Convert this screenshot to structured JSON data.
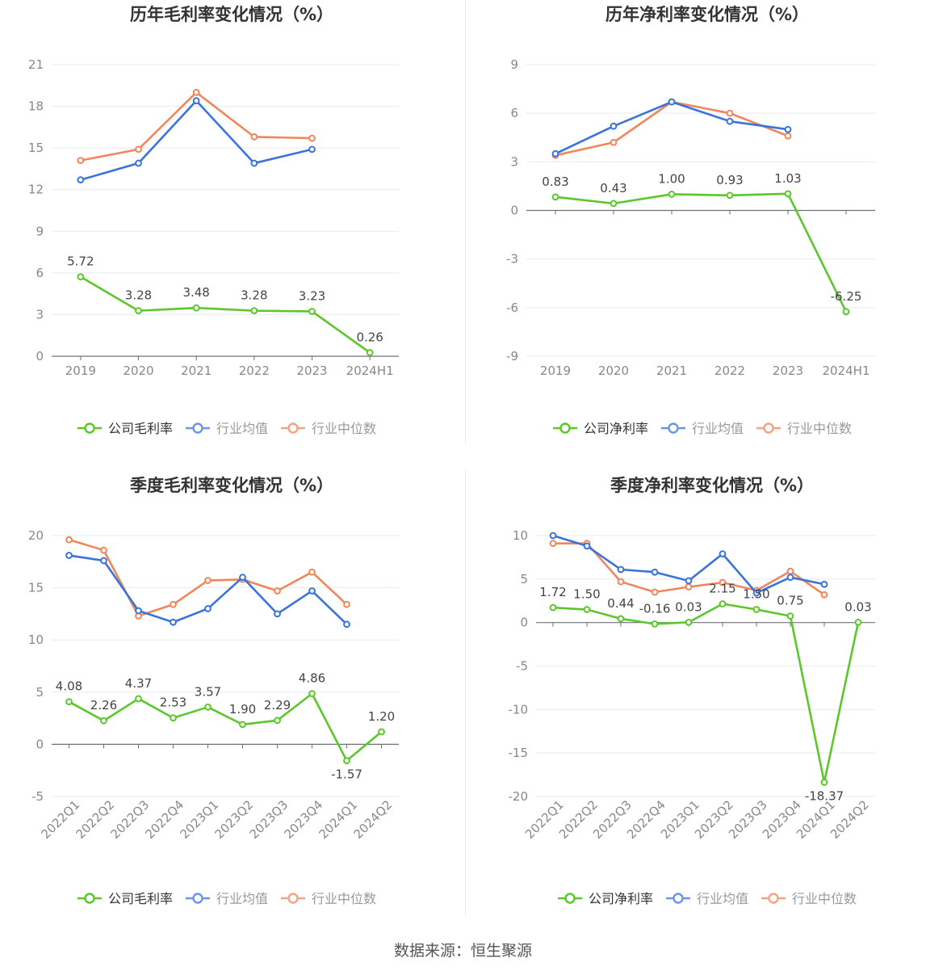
{
  "source": "数据来源：恒生聚源",
  "colors": {
    "company": "#5cc72a",
    "industry_avg": "#3b73dc",
    "industry_median": "#f0865b",
    "grid": "#e6e9f0",
    "axis": "#6e7079",
    "tick_text": "#888888",
    "label_text": "#444444",
    "title_text": "#333333"
  },
  "chart_data": [
    {
      "id": "annual-gross",
      "type": "line",
      "title": "历年毛利率变化情况（%）",
      "categories": [
        "2019",
        "2020",
        "2021",
        "2022",
        "2023",
        "2024H1"
      ],
      "ylim": [
        0,
        21
      ],
      "yticks": [
        0,
        3,
        6,
        9,
        12,
        15,
        18,
        21
      ],
      "ytick_labels": [
        "0",
        "3",
        "6",
        "9",
        "12",
        "15",
        "18",
        "21"
      ],
      "grid": true,
      "legend_position": "bottom",
      "series": [
        {
          "name": "公司毛利率",
          "key": "company",
          "values": [
            5.72,
            3.28,
            3.48,
            3.28,
            3.23,
            0.26
          ],
          "labels": [
            "5.72",
            "3.28",
            "3.48",
            "3.28",
            "3.23",
            "0.26"
          ]
        },
        {
          "name": "行业均值",
          "key": "industry_avg",
          "values": [
            12.7,
            13.9,
            18.4,
            13.9,
            14.9,
            null
          ]
        },
        {
          "name": "行业中位数",
          "key": "industry_median",
          "values": [
            14.1,
            14.9,
            19.0,
            15.8,
            15.7,
            null
          ]
        }
      ]
    },
    {
      "id": "annual-net",
      "type": "line",
      "title": "历年净利率变化情况（%）",
      "categories": [
        "2019",
        "2020",
        "2021",
        "2022",
        "2023",
        "2024H1"
      ],
      "ylim": [
        -9,
        9
      ],
      "yticks": [
        -9,
        -6,
        -3,
        0,
        3,
        6,
        9
      ],
      "ytick_labels": [
        "-9",
        "-6",
        "-3",
        "0",
        "3",
        "6",
        "9"
      ],
      "grid": true,
      "legend_position": "bottom",
      "series": [
        {
          "name": "公司净利率",
          "key": "company",
          "values": [
            0.83,
            0.43,
            1.0,
            0.93,
            1.03,
            -6.25
          ],
          "labels": [
            "0.83",
            "0.43",
            "1.00",
            "0.93",
            "1.03",
            "-6.25"
          ]
        },
        {
          "name": "行业均值",
          "key": "industry_avg",
          "values": [
            3.5,
            5.2,
            6.7,
            5.5,
            5.0,
            null
          ]
        },
        {
          "name": "行业中位数",
          "key": "industry_median",
          "values": [
            3.4,
            4.2,
            6.7,
            6.0,
            4.6,
            null
          ]
        }
      ]
    },
    {
      "id": "quarterly-gross",
      "type": "line",
      "title": "季度毛利率变化情况（%）",
      "categories": [
        "2022Q1",
        "2022Q2",
        "2022Q3",
        "2022Q4",
        "2023Q1",
        "2023Q2",
        "2023Q3",
        "2023Q4",
        "2024Q1",
        "2024Q2"
      ],
      "ylim": [
        -5,
        20
      ],
      "yticks": [
        -5,
        0,
        5,
        10,
        15,
        20
      ],
      "ytick_labels": [
        "-5",
        "0",
        "5",
        "10",
        "15",
        "20"
      ],
      "grid": true,
      "legend_position": "bottom",
      "series": [
        {
          "name": "公司毛利率",
          "key": "company",
          "values": [
            4.08,
            2.26,
            4.37,
            2.53,
            3.57,
            1.9,
            2.29,
            4.86,
            -1.57,
            1.2
          ],
          "labels": [
            "4.08",
            "2.26",
            "4.37",
            "2.53",
            "3.57",
            "1.90",
            "2.29",
            "4.86",
            "-1.57",
            "1.20"
          ]
        },
        {
          "name": "行业均值",
          "key": "industry_avg",
          "values": [
            18.1,
            17.6,
            12.8,
            11.7,
            13.0,
            16.0,
            12.5,
            14.7,
            11.5,
            null
          ]
        },
        {
          "name": "行业中位数",
          "key": "industry_median",
          "values": [
            19.6,
            18.6,
            12.3,
            13.4,
            15.7,
            15.8,
            14.7,
            16.5,
            13.4,
            null
          ]
        }
      ]
    },
    {
      "id": "quarterly-net",
      "type": "line",
      "title": "季度净利率变化情况（%）",
      "categories": [
        "2022Q1",
        "2022Q2",
        "2022Q3",
        "2022Q4",
        "2023Q1",
        "2023Q2",
        "2023Q3",
        "2023Q4",
        "2024Q1",
        "2024Q2"
      ],
      "ylim": [
        -20,
        10
      ],
      "yticks": [
        -20,
        -15,
        -10,
        -5,
        0,
        5,
        10
      ],
      "ytick_labels": [
        "-20",
        "-15",
        "-10",
        "-5",
        "0",
        "5",
        "10"
      ],
      "grid": true,
      "legend_position": "bottom",
      "series": [
        {
          "name": "公司净利率",
          "key": "company",
          "values": [
            1.72,
            1.5,
            0.44,
            -0.16,
            0.03,
            2.15,
            1.5,
            0.75,
            -18.37,
            0.03
          ],
          "labels": [
            "1.72",
            "1.50",
            "0.44",
            "-0.16",
            "0.03",
            "2.15",
            "1.50",
            "0.75",
            "-18.37",
            "0.03"
          ]
        },
        {
          "name": "行业均值",
          "key": "industry_avg",
          "values": [
            10.0,
            8.8,
            6.1,
            5.8,
            4.8,
            7.9,
            3.4,
            5.2,
            4.4,
            null
          ]
        },
        {
          "name": "行业中位数",
          "key": "industry_median",
          "values": [
            9.1,
            9.1,
            4.7,
            3.5,
            4.1,
            4.6,
            3.7,
            5.9,
            3.2,
            null
          ]
        }
      ]
    }
  ]
}
